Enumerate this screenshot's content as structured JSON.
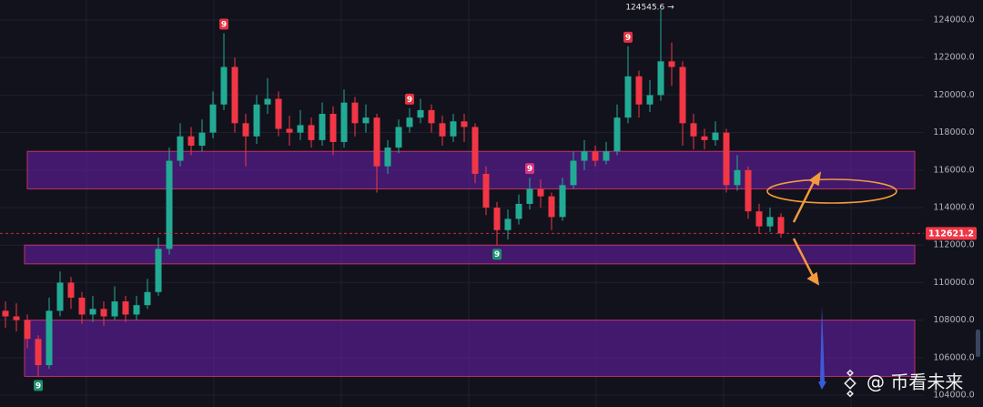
{
  "chart_data": {
    "type": "candlestick",
    "open": [
      108500,
      108200,
      108000,
      107000,
      105600,
      108500,
      110000,
      109200,
      108300,
      108600,
      108200,
      109000,
      108300,
      108800,
      109500,
      111800,
      116500,
      117800,
      117300,
      118000,
      119500,
      121500,
      118500,
      117800,
      119500,
      119800,
      118200,
      118000,
      118400,
      117600,
      119000,
      117500,
      119600,
      118500,
      118800,
      116200,
      117200,
      118300,
      118800,
      119200,
      118500,
      117800,
      118600,
      118300,
      115800,
      114000,
      112800,
      113400,
      114200,
      115000,
      114600,
      113500,
      115200,
      116500,
      117000,
      116500,
      117000,
      118800,
      121000,
      119500,
      120000,
      121800,
      121500,
      118500,
      117800,
      117600,
      118000,
      115200,
      116000,
      113800,
      113000,
      113500
    ],
    "high": [
      109000,
      108900,
      108300,
      107200,
      109200,
      110600,
      110300,
      109500,
      109300,
      109000,
      109800,
      109300,
      109300,
      110200,
      112400,
      117200,
      118500,
      118300,
      118700,
      120200,
      123300,
      122000,
      119000,
      120000,
      120900,
      120200,
      118900,
      119200,
      118800,
      119600,
      119400,
      120300,
      119900,
      119500,
      119000,
      117600,
      118700,
      119300,
      119800,
      119500,
      118900,
      119000,
      119000,
      118500,
      116200,
      114300,
      113900,
      114700,
      115600,
      115500,
      114800,
      115600,
      117000,
      117600,
      117300,
      117500,
      119500,
      122600,
      121300,
      120800,
      124545.6,
      122800,
      121800,
      119000,
      118200,
      118600,
      118200,
      116800,
      116200,
      114200,
      114000,
      113700
    ],
    "low": [
      107600,
      107400,
      106500,
      105000,
      105400,
      108200,
      108600,
      107800,
      107900,
      107700,
      108000,
      107900,
      108000,
      108600,
      109300,
      111500,
      116200,
      116800,
      117000,
      117700,
      119200,
      118000,
      116200,
      117400,
      119000,
      117800,
      117300,
      117600,
      117200,
      117300,
      116800,
      117200,
      117800,
      118000,
      114800,
      115800,
      116900,
      118000,
      118500,
      118000,
      117300,
      117500,
      117500,
      115300,
      113600,
      112000,
      112300,
      113100,
      113900,
      114000,
      112800,
      113300,
      115000,
      116000,
      116200,
      116300,
      116800,
      118500,
      118800,
      119100,
      119700,
      120500,
      117300,
      117100,
      117100,
      117300,
      114800,
      114900,
      113400,
      112600,
      112700,
      112400
    ],
    "close": [
      108200,
      108000,
      107000,
      105600,
      108500,
      110000,
      109200,
      108300,
      108600,
      108200,
      109000,
      108300,
      108800,
      109500,
      111800,
      116500,
      117800,
      117300,
      118000,
      119500,
      121500,
      118500,
      117800,
      119500,
      119800,
      118200,
      118000,
      118400,
      117600,
      119000,
      117500,
      119600,
      118500,
      118800,
      116200,
      117200,
      118300,
      118800,
      119200,
      118500,
      117800,
      118600,
      118300,
      115800,
      114000,
      112800,
      113400,
      114200,
      115000,
      114600,
      113500,
      115200,
      116500,
      117000,
      116500,
      117000,
      118800,
      121000,
      119500,
      120000,
      121800,
      121500,
      118500,
      117800,
      117600,
      118000,
      115200,
      116000,
      113800,
      113000,
      113500,
      112621
    ],
    "up_color": "#22ab94",
    "down_color": "#f23645",
    "ylim": [
      103370,
      125070
    ],
    "yticks": [
      {
        "value": 104000,
        "label": "104000.0"
      },
      {
        "value": 106000,
        "label": "106000.0"
      },
      {
        "value": 108000,
        "label": "108000.0"
      },
      {
        "value": 110000,
        "label": "110000.0"
      },
      {
        "value": 112000,
        "label": "112000.0"
      },
      {
        "value": 114000,
        "label": "114000.0"
      },
      {
        "value": 116000,
        "label": "116000.0"
      },
      {
        "value": 118000,
        "label": "118000.0"
      },
      {
        "value": 120000,
        "label": "120000.0"
      },
      {
        "value": 122000,
        "label": "122000.0"
      },
      {
        "value": 124000,
        "label": "124000.0"
      }
    ],
    "grid": true,
    "last_price": 112621.2,
    "high_annotation": {
      "value": 124545.6,
      "label": "124545.6 →"
    },
    "zones": [
      {
        "from": 115000,
        "to": 117000
      },
      {
        "from": 111000,
        "to": 112000
      },
      {
        "from": 105000,
        "to": 108000
      }
    ],
    "zone_color": "#6a1fb0",
    "markers": [
      {
        "label": "9",
        "candle": 3,
        "position": "below",
        "color": "#1e8f6e"
      },
      {
        "label": "9",
        "candle": 20,
        "position": "above",
        "color": "#e0333f"
      },
      {
        "label": "9",
        "candle": 37,
        "position": "above",
        "color": "#e0333f"
      },
      {
        "label": "9",
        "candle": 45,
        "position": "below",
        "color": "#1e8f6e"
      },
      {
        "label": "9",
        "candle": 48,
        "position": "above",
        "color": "#d6337f"
      },
      {
        "label": "9",
        "candle": 57,
        "position": "above",
        "color": "#e0333f"
      }
    ],
    "watermark": "@ 币看未来"
  }
}
